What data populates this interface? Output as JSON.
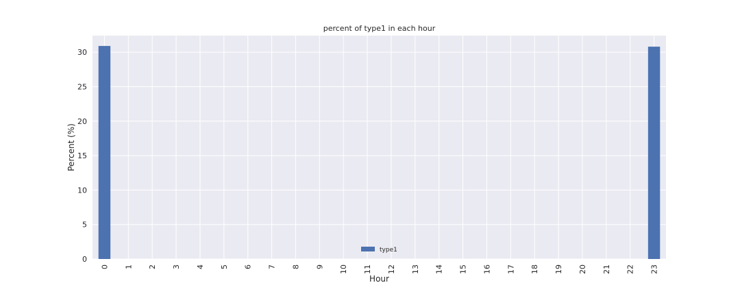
{
  "chart_data": {
    "type": "bar",
    "title": "percent of type1 in each hour",
    "xlabel": "Hour",
    "ylabel": "Percent (%)",
    "categories": [
      "0",
      "1",
      "2",
      "3",
      "4",
      "5",
      "6",
      "7",
      "8",
      "9",
      "10",
      "11",
      "12",
      "13",
      "14",
      "15",
      "16",
      "17",
      "18",
      "19",
      "20",
      "21",
      "22",
      "23"
    ],
    "series": [
      {
        "name": "type1",
        "color": "#4c72b0",
        "values": [
          30.9,
          0,
          0,
          0,
          0,
          0,
          0,
          0,
          0,
          0,
          0,
          0,
          0,
          0,
          0,
          0,
          0,
          0,
          0,
          0,
          0,
          0,
          0,
          30.8
        ]
      }
    ],
    "ylim": [
      0,
      32.4
    ],
    "yticks": [
      0,
      5,
      10,
      15,
      20,
      25,
      30
    ],
    "grid": true,
    "legend": "lower-center",
    "background": "#eaeaf2",
    "grid_color": "#ffffff"
  }
}
